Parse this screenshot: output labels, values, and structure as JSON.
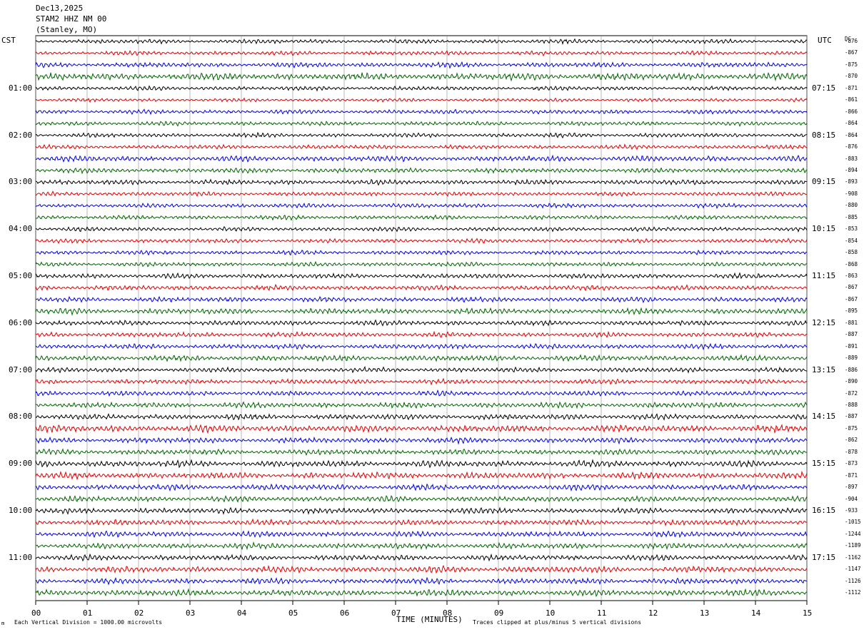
{
  "header": {
    "date": "Dec13,2025",
    "station": "STAM2 HHZ NM 00",
    "location": "(Stanley, MO)"
  },
  "left_tz": "CST",
  "right_tz": "UTC",
  "dc_header": "DC",
  "footer": {
    "scale_note": "Each Vertical Division = 1000.00 microvolts",
    "xlabel": "TIME (MINUTES)",
    "clip_note": "Traces clipped at plus/minus 5 vertical divisions",
    "corner_mark": "m"
  },
  "colors": {
    "trace_cycle": [
      "#000000",
      "#e00000",
      "#0000e0",
      "#006400"
    ],
    "grid": "#888888"
  },
  "chart_data": {
    "type": "line",
    "description_kind": "helicorder",
    "xlabel": "TIME (MINUTES)",
    "xlim": [
      0,
      15
    ],
    "x_ticks": [
      "00",
      "01",
      "02",
      "03",
      "04",
      "05",
      "06",
      "07",
      "08",
      "09",
      "10",
      "11",
      "12",
      "13",
      "14",
      "15"
    ],
    "rows_per_hour": 4,
    "left_time_labels": [
      "01:00",
      "02:00",
      "03:00",
      "04:00",
      "05:00",
      "06:00",
      "07:00",
      "08:00",
      "09:00",
      "10:00",
      "11:00"
    ],
    "right_time_labels": [
      "07:15",
      "08:15",
      "09:15",
      "10:15",
      "11:15",
      "12:15",
      "13:15",
      "14:15",
      "15:15",
      "16:15",
      "17:15"
    ],
    "dc_offsets": [
      -876,
      -867,
      -875,
      -870,
      -871,
      -861,
      -866,
      -864,
      -864,
      -876,
      -883,
      -894,
      -893,
      -908,
      -880,
      -885,
      -853,
      -854,
      -858,
      -868,
      -863,
      -867,
      -867,
      -895,
      -881,
      -887,
      -891,
      -889,
      -886,
      -890,
      -872,
      -888,
      -887,
      -875,
      -862,
      -878,
      -873,
      -871,
      -897,
      -904,
      -933,
      -1015,
      -1244,
      -1189,
      -1162,
      -1147,
      -1126,
      -1112
    ],
    "relative_amplitude": [
      0.6,
      0.6,
      0.7,
      1.0,
      0.6,
      0.5,
      0.6,
      0.6,
      0.6,
      0.6,
      0.8,
      0.7,
      0.7,
      0.6,
      0.6,
      0.6,
      0.6,
      0.6,
      0.6,
      0.6,
      0.7,
      0.7,
      0.7,
      0.8,
      0.7,
      0.7,
      0.7,
      0.8,
      0.7,
      0.7,
      0.7,
      0.8,
      0.8,
      1.0,
      0.8,
      0.8,
      0.9,
      0.9,
      0.8,
      0.8,
      0.8,
      0.8,
      0.8,
      0.8,
      0.8,
      0.9,
      0.8,
      0.9
    ]
  }
}
